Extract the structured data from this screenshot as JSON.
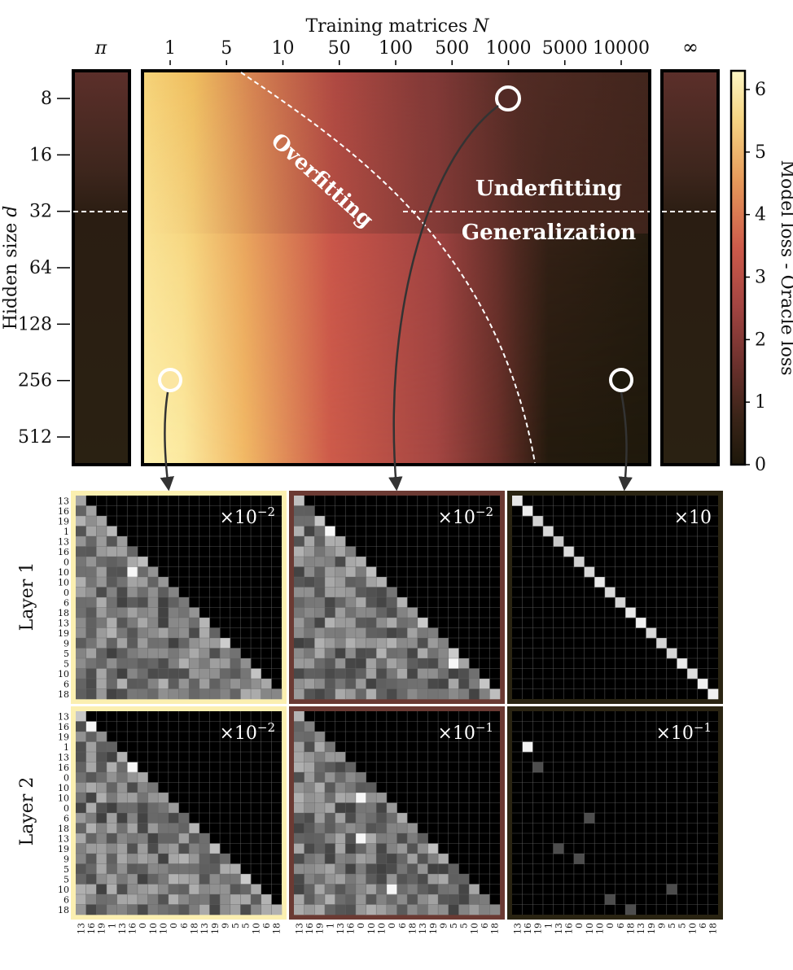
{
  "chart_data": {
    "type": "heatmap",
    "title": "",
    "xlabel": "Training matrices N",
    "ylabel": "Hidden size d",
    "x_ticks": [
      "1",
      "5",
      "10",
      "50",
      "100",
      "500",
      "1000",
      "5000",
      "10000"
    ],
    "x_extra": {
      "left": "π",
      "right": "∞"
    },
    "y_ticks": [
      "8",
      "16",
      "32",
      "64",
      "128",
      "256",
      "512"
    ],
    "colorbar": {
      "label": "Model loss - Oracle loss",
      "ticks": [
        "0",
        "1",
        "2",
        "3",
        "4",
        "5",
        "6"
      ],
      "range": [
        0,
        6.3
      ]
    },
    "region_labels": [
      "Overfitting",
      "Underfitting",
      "Generalization"
    ],
    "threshold_hidden_size": 32,
    "markers": [
      {
        "N": "1",
        "d": "256",
        "loss": 6.0
      },
      {
        "N": "1000",
        "d": "8",
        "loss": 1.3
      },
      {
        "N": "10000",
        "d": "256",
        "loss": 0.1
      }
    ],
    "panel_row_labels": [
      "Layer 1",
      "Layer 2"
    ],
    "scales": [
      [
        "×10",
        "−2",
        "×10",
        "−2",
        "×10",
        ""
      ],
      [
        "×10",
        "−2",
        "×10",
        "−1",
        "×10",
        "−1"
      ]
    ],
    "sequence_labels": [
      "13",
      "16",
      "19",
      "1",
      "13",
      "16",
      "0",
      "10",
      "10",
      "0",
      "6",
      "18",
      "13",
      "19",
      "9",
      "5",
      "5",
      "10",
      "6",
      "18"
    ],
    "colors": {
      "high": "#fdf4b6",
      "mid": "#c9574b",
      "low": "#1e180b"
    }
  }
}
